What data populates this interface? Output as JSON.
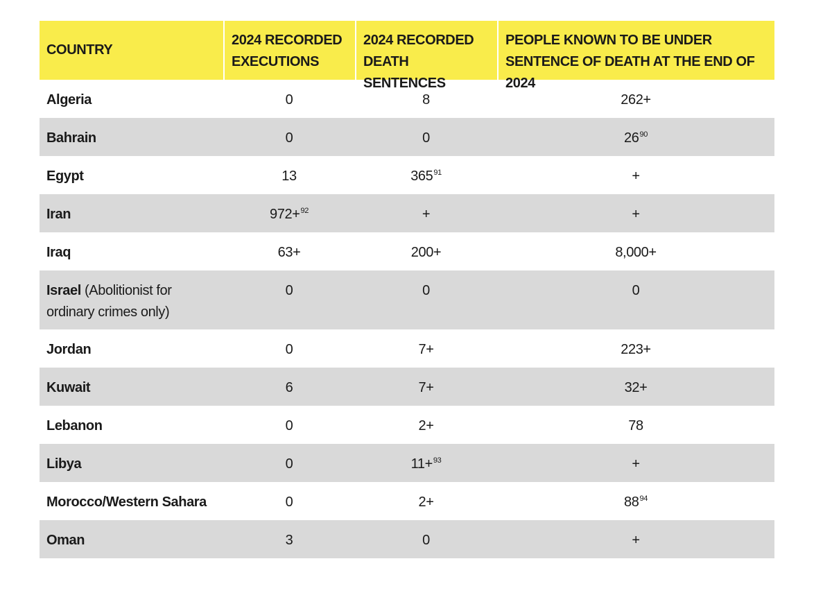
{
  "table": {
    "header": [
      "COUNTRY",
      "2024 RECORDED EXECUTIONS",
      "2024 RECORDED DEATH SENTENCES",
      "PEOPLE KNOWN TO BE UNDER SENTENCE OF DEATH AT THE END OF 2024"
    ],
    "rows": [
      [
        {
          "name": "Algeria"
        },
        {
          "text": "0"
        },
        {
          "text": "8"
        },
        {
          "text": "262+"
        }
      ],
      [
        {
          "name": "Bahrain"
        },
        {
          "text": "0"
        },
        {
          "text": "0"
        },
        {
          "text": "26",
          "sup": "90"
        }
      ],
      [
        {
          "name": "Egypt"
        },
        {
          "text": "13"
        },
        {
          "text": "365",
          "sup": "91"
        },
        {
          "text": "+"
        }
      ],
      [
        {
          "name": "Iran"
        },
        {
          "text": "972+",
          "sup": "92"
        },
        {
          "text": "+"
        },
        {
          "text": "+"
        }
      ],
      [
        {
          "name": "Iraq"
        },
        {
          "text": "63+"
        },
        {
          "text": "200+"
        },
        {
          "text": "8,000+"
        }
      ],
      [
        {
          "name": "Israel",
          "note": "(Abolitionist for ordinary crimes only)"
        },
        {
          "text": "0"
        },
        {
          "text": "0"
        },
        {
          "text": "0"
        }
      ],
      [
        {
          "name": "Jordan"
        },
        {
          "text": "0"
        },
        {
          "text": "7+"
        },
        {
          "text": "223+"
        }
      ],
      [
        {
          "name": "Kuwait"
        },
        {
          "text": "6"
        },
        {
          "text": "7+"
        },
        {
          "text": "32+"
        }
      ],
      [
        {
          "name": "Lebanon"
        },
        {
          "text": "0"
        },
        {
          "text": "2+"
        },
        {
          "text": "78"
        }
      ],
      [
        {
          "name": "Libya"
        },
        {
          "text": "0"
        },
        {
          "text": "11+",
          "sup": "93"
        },
        {
          "text": "+"
        }
      ],
      [
        {
          "name": "Morocco/Western Sahara"
        },
        {
          "text": "0"
        },
        {
          "text": "2+"
        },
        {
          "text": "88",
          "sup": "94"
        }
      ],
      [
        {
          "name": "Oman"
        },
        {
          "text": "3"
        },
        {
          "text": "0"
        },
        {
          "text": "+"
        }
      ]
    ]
  }
}
